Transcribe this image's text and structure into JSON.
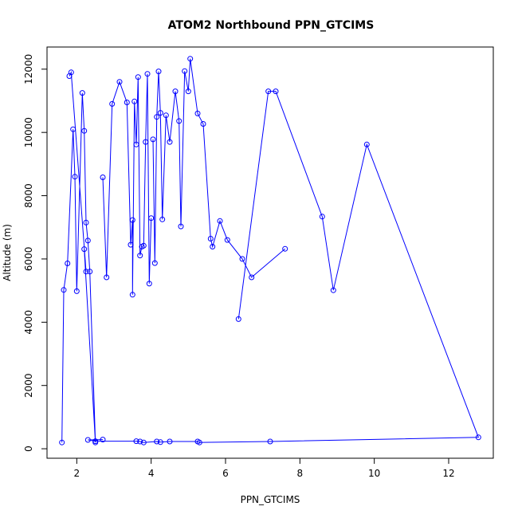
{
  "chart_data": {
    "type": "scatter",
    "title": "ATOM2 Northbound PPN_GTCIMS",
    "xlabel": "PPN_GTCIMS",
    "ylabel": "Altitude (m)",
    "xlim": [
      1.2,
      13.2
    ],
    "ylim": [
      -300,
      12700
    ],
    "xticks": [
      2,
      4,
      6,
      8,
      10,
      12
    ],
    "yticks": [
      0,
      2000,
      4000,
      6000,
      8000,
      10000,
      12000
    ],
    "grid": false,
    "legend": "none",
    "color": "#0000ff",
    "series": [
      {
        "x": [
          1.6,
          1.65,
          1.75,
          1.9,
          1.95,
          2.0,
          2.15,
          2.2,
          2.25,
          2.3,
          2.35,
          2.5,
          2.2,
          2.25,
          1.85,
          1.8
        ],
        "y": [
          200,
          5020,
          5860,
          10100,
          8600,
          4980,
          11250,
          10050,
          7150,
          6580,
          5600,
          200,
          6310,
          5600,
          11900,
          11780
        ]
      },
      {
        "x": [
          2.7,
          2.8,
          2.95,
          3.15,
          3.35,
          3.45,
          3.5,
          3.5,
          3.55,
          3.6,
          3.65,
          3.7,
          3.75,
          3.8,
          3.85,
          3.9,
          3.95,
          4.0
        ],
        "y": [
          8580,
          5420,
          10900,
          11600,
          10950,
          6450,
          7230,
          4870,
          10980,
          9620,
          11750,
          6110,
          6390,
          6420,
          9700,
          11850,
          5220,
          7290
        ]
      },
      {
        "x": [
          4.05,
          4.1,
          4.15,
          4.2,
          4.25,
          4.3,
          4.4,
          4.5,
          4.65,
          4.75,
          4.8,
          4.9,
          5.0,
          5.05,
          5.25,
          5.4,
          5.6,
          5.65,
          5.85,
          6.05,
          6.45,
          6.7,
          7.6
        ],
        "y": [
          9780,
          5870,
          10490,
          11930,
          10620,
          7250,
          10540,
          9700,
          11300,
          10360,
          7030,
          11940,
          11300,
          12330,
          10600,
          10270,
          6640,
          6390,
          7200,
          6600,
          6000,
          5420,
          6320
        ]
      },
      {
        "x": [
          6.35,
          7.15,
          7.35,
          8.6,
          8.9,
          9.8,
          12.8,
          7.2,
          5.3,
          5.25,
          4.5,
          4.25,
          4.15,
          3.8,
          3.7,
          3.6,
          2.5,
          2.3,
          2.7
        ],
        "y": [
          4100,
          11300,
          11300,
          7340,
          5010,
          9620,
          360,
          230,
          200,
          230,
          230,
          210,
          230,
          200,
          230,
          240,
          240,
          280,
          290
        ]
      }
    ]
  }
}
